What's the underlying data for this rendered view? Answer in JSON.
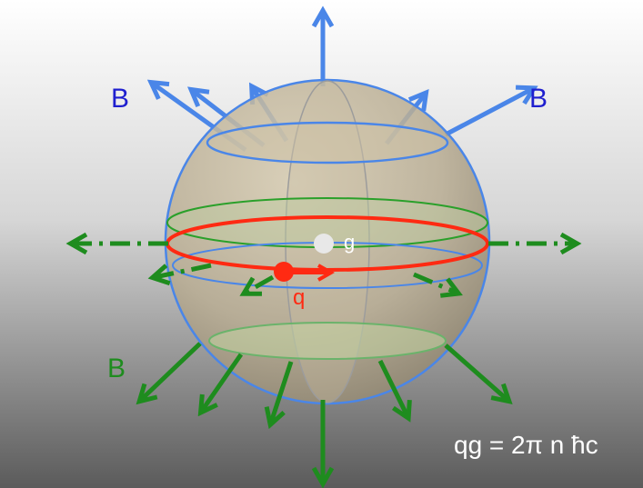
{
  "labels": {
    "b_field_upper_left": "B",
    "b_field_upper_right": "B",
    "b_field_lower_left": "B",
    "monopole_charge": "g",
    "electric_charge": "q",
    "quantization_condition": "qg = 2π n ħc"
  },
  "colors": {
    "background_top": "#ffffff",
    "background_bottom": "#5b5b5b",
    "sphere_fill": "#b9ad93",
    "sphere_outline": "#4a86e8",
    "upper_field_arrows": "#4a86e8",
    "lower_field_arrows": "#1e8c1e",
    "charge_orbit": "#ff2a12",
    "charge_dot": "#ff2a12",
    "monopole_dot": "#e8e8e8",
    "label_blue": "#1f1fcf",
    "label_green": "#1e8c1e",
    "label_red": "#ff2a12",
    "label_white": "#ffffff"
  }
}
